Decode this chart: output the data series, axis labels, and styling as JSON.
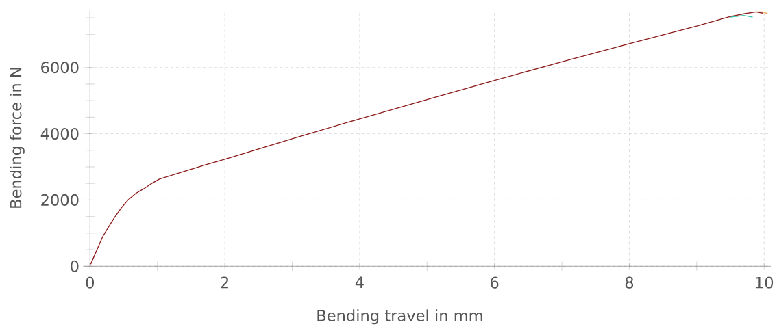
{
  "chart_data": {
    "type": "line",
    "xlabel": "Bending travel in mm",
    "ylabel": "Bending force in N",
    "xlim": [
      -0.1,
      10.1
    ],
    "ylim": [
      0,
      7750
    ],
    "xticks": [
      0,
      {
        "value": 1,
        "label": null
      },
      2,
      {
        "value": 3,
        "label": null
      },
      4,
      {
        "value": 5,
        "label": null
      },
      6,
      {
        "value": 7,
        "label": null
      },
      8,
      {
        "value": 9,
        "label": null
      },
      10
    ],
    "yticks": [
      0,
      {
        "value": 500,
        "label": null
      },
      {
        "value": 1000,
        "label": null
      },
      {
        "value": 1500,
        "label": null
      },
      2000,
      {
        "value": 2500,
        "label": null
      },
      {
        "value": 3000,
        "label": null
      },
      {
        "value": 3500,
        "label": null
      },
      4000,
      {
        "value": 4500,
        "label": null
      },
      {
        "value": 5000,
        "label": null
      },
      {
        "value": 5500,
        "label": null
      },
      6000,
      {
        "value": 6500,
        "label": null
      },
      {
        "value": 7000,
        "label": null
      },
      {
        "value": 7500,
        "label": null
      }
    ],
    "grid": true,
    "marker": "none",
    "line_style": "solid",
    "series": [
      {
        "color": "#f5a04a",
        "x": [
          9.88,
          9.98,
          10.05
        ],
        "values": [
          7680,
          7680,
          7620
        ]
      },
      {
        "color": "#2ec4a5",
        "x": [
          9.5,
          9.7,
          9.83
        ],
        "values": [
          7520,
          7570,
          7520
        ]
      },
      {
        "color": "#8b1a1a",
        "x": [
          0.01,
          0.1,
          0.19,
          0.28,
          0.36,
          0.46,
          0.57,
          0.68,
          0.8,
          0.9,
          1.03,
          1.3,
          1.71,
          2,
          3,
          4,
          5,
          6,
          7,
          8,
          9,
          9.5,
          9.7,
          9.88,
          9.98
        ],
        "values": [
          60,
          480,
          900,
          1200,
          1460,
          1750,
          2010,
          2200,
          2340,
          2480,
          2630,
          2800,
          3060,
          3230,
          3850,
          4450,
          5030,
          5610,
          6170,
          6720,
          7250,
          7540,
          7620,
          7680,
          7640
        ]
      }
    ]
  }
}
